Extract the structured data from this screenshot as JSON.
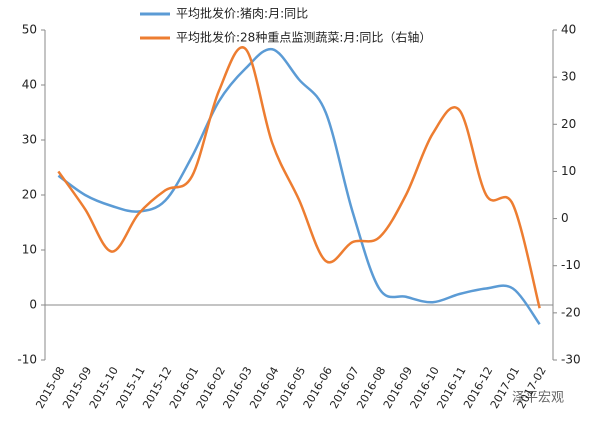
{
  "chart_data": {
    "type": "line",
    "categories": [
      "2015-08",
      "2015-09",
      "2015-10",
      "2015-11",
      "2015-12",
      "2016-01",
      "2016-02",
      "2016-03",
      "2016-04",
      "2016-05",
      "2016-06",
      "2016-07",
      "2016-08",
      "2016-09",
      "2016-10",
      "2016-11",
      "2016-12",
      "2017-01",
      "2017-02"
    ],
    "series": [
      {
        "name": "平均批发价:猪肉:月:同比",
        "color": "#5b9bd5",
        "values": [
          23.5,
          20,
          18,
          17,
          19,
          27,
          37,
          43,
          46.5,
          41,
          35,
          17,
          3,
          1.5,
          0.5,
          2,
          3,
          3,
          -3.5
        ]
      },
      {
        "name": "平均批发价:28种重点监测蔬菜:月:同比（右轴）",
        "color": "#ed7d31",
        "axis": "y2",
        "values": [
          10,
          2,
          -7,
          1,
          6,
          9,
          27,
          36,
          16,
          4,
          -9,
          -5,
          -4,
          5,
          18,
          23,
          5,
          3,
          -19
        ]
      }
    ],
    "ylim": [
      -10,
      50
    ],
    "yticks": [
      -10,
      0,
      10,
      20,
      30,
      40,
      50
    ],
    "y2lim": [
      -30,
      40
    ],
    "y2ticks": [
      -30,
      -20,
      -10,
      0,
      10,
      20,
      30,
      40
    ],
    "grid": false,
    "legend": "top",
    "watermark": "泽平宏观"
  }
}
